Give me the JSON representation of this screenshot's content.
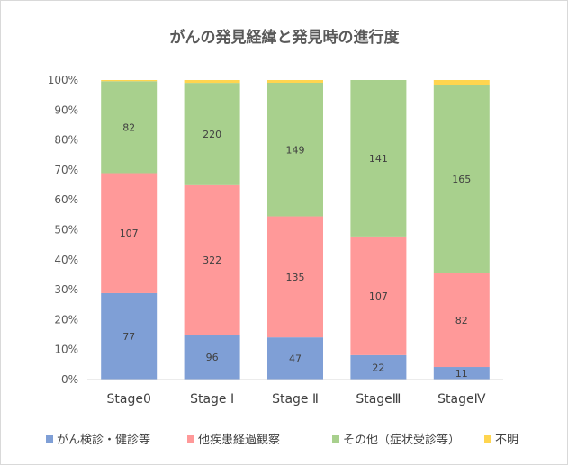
{
  "chart_data": {
    "type": "bar",
    "stacked": "percent",
    "title": "がんの発見経緯と発見時の進行度",
    "categories": [
      "Stage0",
      "Stage Ⅰ",
      "Stage Ⅱ",
      "StageⅢ",
      "StageⅣ"
    ],
    "series": [
      {
        "name": "がん検診・健診等",
        "color": "#7f9fd6",
        "values": [
          77,
          96,
          47,
          22,
          11
        ]
      },
      {
        "name": "他疾患経過観察",
        "color": "#ff9999",
        "values": [
          107,
          322,
          135,
          107,
          82
        ]
      },
      {
        "name": "その他（症状受診等）",
        "color": "#a8d08d",
        "values": [
          82,
          220,
          149,
          141,
          165
        ]
      },
      {
        "name": "不明",
        "color": "#ffd54f",
        "values": [
          1,
          6,
          3,
          0,
          4
        ]
      }
    ],
    "shown_labels": [
      [
        "77",
        "96",
        "47",
        "22",
        "11"
      ],
      [
        "107",
        "322",
        "135",
        "107",
        "82"
      ],
      [
        "82",
        "220",
        "149",
        "141",
        "165"
      ],
      [
        "",
        "",
        "",
        "",
        ""
      ]
    ],
    "yticks": [
      "0%",
      "10%",
      "20%",
      "30%",
      "40%",
      "50%",
      "60%",
      "70%",
      "80%",
      "90%",
      "100%"
    ],
    "ylim": [
      0,
      100
    ],
    "grid": false,
    "legend": "bottom"
  }
}
